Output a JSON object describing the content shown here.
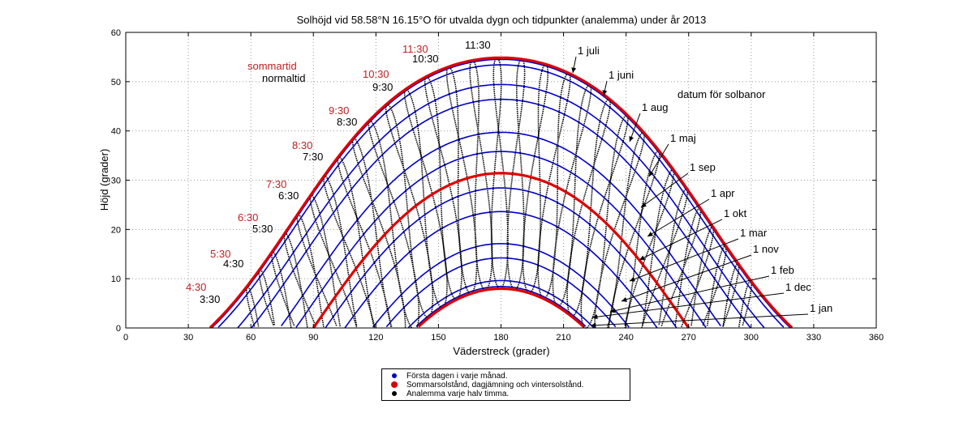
{
  "chart_data": {
    "type": "line",
    "title": "Solhöjd vid 58.58°N 16.15°O för utvalda dygn och tidpunkter (analemma) under år 2013",
    "xlabel": "Väderstreck (grader)",
    "ylabel": "Höjd (grader)",
    "xlim": [
      0,
      360
    ],
    "ylim": [
      0,
      60
    ],
    "xticks": [
      "0",
      "30",
      "60",
      "90",
      "120",
      "150",
      "180",
      "210",
      "240",
      "270",
      "300",
      "330",
      "360"
    ],
    "yticks": [
      "0",
      "10",
      "20",
      "30",
      "40",
      "50",
      "60"
    ],
    "grid": true,
    "latitude": 58.58,
    "sun_paths_blue": [
      {
        "date": "1 jan",
        "declination": -23.0
      },
      {
        "date": "1 feb",
        "declination": -17.2
      },
      {
        "date": "1 mar",
        "declination": -7.8
      },
      {
        "date": "1 apr",
        "declination": 4.4
      },
      {
        "date": "1 maj",
        "declination": 15.0
      },
      {
        "date": "1 jun",
        "declination": 22.0
      },
      {
        "date": "1 jul",
        "declination": 23.1
      },
      {
        "date": "1 aug",
        "declination": 18.0
      },
      {
        "date": "1 sep",
        "declination": 8.3
      },
      {
        "date": "1 okt",
        "declination": -3.0
      },
      {
        "date": "1 nov",
        "declination": -14.3
      },
      {
        "date": "1 dec",
        "declination": -21.8
      }
    ],
    "sun_paths_red": [
      {
        "name": "sommarsolstånd",
        "declination": 23.44
      },
      {
        "name": "dagjämning",
        "declination": 0.0
      },
      {
        "name": "vintersolstånd",
        "declination": -23.44
      }
    ],
    "legend": [
      {
        "label": "Första dagen i varje månad.",
        "color": "#0000cc"
      },
      {
        "label": "Sommarsolstånd, dagjämning och vintersolstånd.",
        "color": "#dd0000"
      },
      {
        "label": "Analemma varje halv timma.",
        "color": "#000000"
      }
    ],
    "legend_placement": "below",
    "time_labels_summer": [
      "4:30",
      "5:30",
      "6:30",
      "7:30",
      "8:30",
      "9:30",
      "10:30",
      "11:30"
    ],
    "time_labels_normal": [
      "3:30",
      "4:30",
      "5:30",
      "6:30",
      "7:30",
      "8:30",
      "9:30",
      "10:30",
      "11:30"
    ],
    "annotations": {
      "sommartid": "sommartid",
      "normaltid": "normaltid",
      "datum": "datum för solbanor"
    },
    "date_labels": [
      "1 juli",
      "1 juni",
      "1 aug",
      "1 maj",
      "1 sep",
      "1 apr",
      "1 okt",
      "1 mar",
      "1 nov",
      "1 feb",
      "1 dec",
      "1 jan"
    ],
    "colors": {
      "blue": "#0000cc",
      "red": "#dd0000",
      "black": "#000000",
      "summer_text": "#bb2222"
    }
  }
}
